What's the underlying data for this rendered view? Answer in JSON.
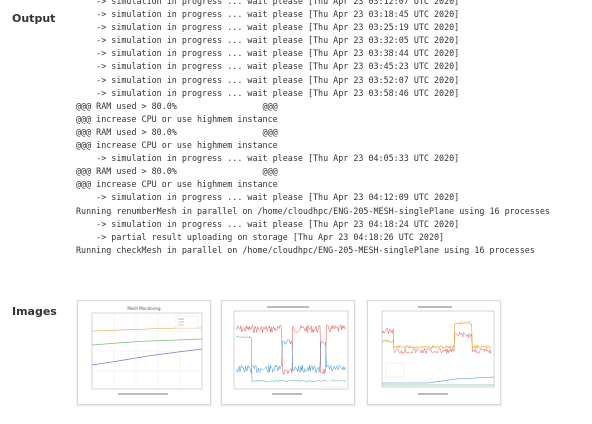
{
  "output": {
    "label": "Output",
    "lines": [
      "    -> simulation in progress ... wait please [Thu Apr 23 03:12:07 UTC 2020]",
      "    -> simulation in progress ... wait please [Thu Apr 23 03:18:45 UTC 2020]",
      "    -> simulation in progress ... wait please [Thu Apr 23 03:25:19 UTC 2020]",
      "    -> simulation in progress ... wait please [Thu Apr 23 03:32:05 UTC 2020]",
      "    -> simulation in progress ... wait please [Thu Apr 23 03:38:44 UTC 2020]",
      "    -> simulation in progress ... wait please [Thu Apr 23 03:45:23 UTC 2020]",
      "    -> simulation in progress ... wait please [Thu Apr 23 03:52:07 UTC 2020]",
      "    -> simulation in progress ... wait please [Thu Apr 23 03:58:46 UTC 2020]",
      "@@@ RAM used > 80.0%                 @@@",
      "@@@ increase CPU or use highmem instance",
      "@@@ RAM used > 80.0%                 @@@",
      "@@@ increase CPU or use highmem instance",
      "    -> simulation in progress ... wait please [Thu Apr 23 04:05:33 UTC 2020]",
      "@@@ RAM used > 80.0%                 @@@",
      "@@@ increase CPU or use highmem instance",
      "    -> simulation in progress ... wait please [Thu Apr 23 04:12:09 UTC 2020]",
      "Running renumberMesh in parallel on /home/cloudhpc/ENG-205-MESH-singlePlane using 16 processes",
      "    -> simulation in progress ... wait please [Thu Apr 23 04:18:24 UTC 2020]",
      "    -> partial result uploading on storage [Thu Apr 23 04:18:26 UTC 2020]",
      "Running checkMesh in parallel on /home/cloudhpc/ENG-205-MESH-singlePlane using 16 processes"
    ]
  },
  "images": {
    "label": "Images",
    "thumbnails": [
      {
        "title": "Mesh Monitoring",
        "kind": "log-lines"
      },
      {
        "title": "",
        "kind": "noisy-plot"
      },
      {
        "title": "",
        "kind": "step-plot"
      }
    ]
  }
}
